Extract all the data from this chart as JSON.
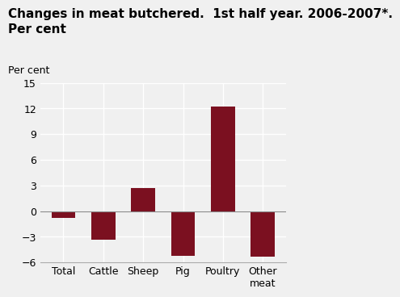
{
  "title": "Changes in meat butchered.  1st half year. 2006-2007*.\nPer cent",
  "ylabel": "Per cent",
  "categories": [
    "Total",
    "Cattle",
    "Sheep",
    "Pig",
    "Poultry",
    "Other\nmeat"
  ],
  "values": [
    -0.8,
    -3.3,
    2.7,
    -5.2,
    12.2,
    -5.3
  ],
  "bar_color": "#7b1020",
  "ylim": [
    -6,
    15
  ],
  "yticks": [
    -6,
    -3,
    0,
    3,
    6,
    9,
    12,
    15
  ],
  "background_color": "#f0f0f0",
  "grid_color": "#ffffff",
  "title_fontsize": 11,
  "axis_fontsize": 9
}
